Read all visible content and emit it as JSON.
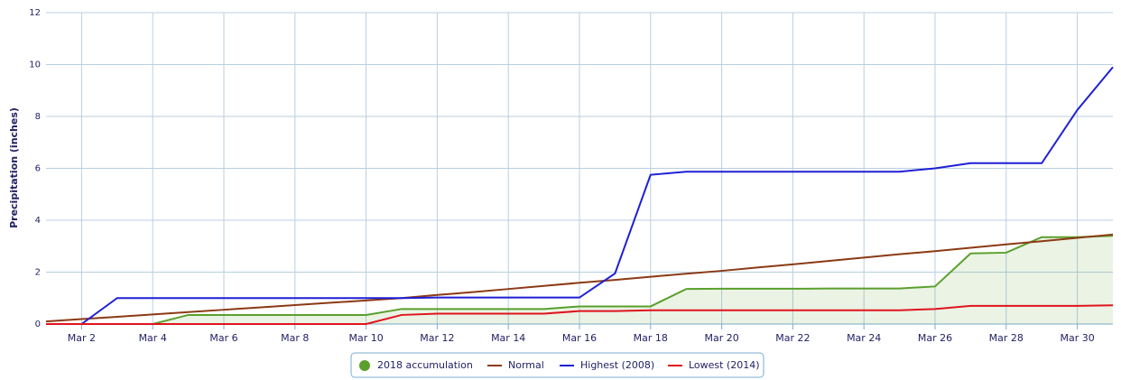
{
  "chart_data": {
    "type": "line",
    "y_label": "Precipitation (inches)",
    "categories": [
      null,
      "Mar 2",
      null,
      "Mar 4",
      null,
      "Mar 6",
      null,
      "Mar 8",
      null,
      "Mar 10",
      null,
      "Mar 12",
      null,
      "Mar 14",
      null,
      "Mar 16",
      null,
      "Mar 18",
      null,
      "Mar 20",
      null,
      "Mar 22",
      null,
      "Mar 24",
      null,
      "Mar 26",
      null,
      "Mar 28",
      null,
      "Mar 30",
      null
    ],
    "ylim": [
      0,
      12
    ],
    "yticks": [
      0,
      2,
      4,
      6,
      8,
      10,
      12
    ],
    "grid": true,
    "series": [
      {
        "name": "2018 accumulation",
        "color": "#5aa02c",
        "area": true,
        "values": [
          0,
          0,
          0,
          0,
          0.35,
          0.35,
          0.35,
          0.35,
          0.35,
          0.35,
          0.58,
          0.58,
          0.58,
          0.58,
          0.58,
          0.68,
          0.68,
          0.68,
          1.35,
          1.36,
          1.36,
          1.36,
          1.37,
          1.37,
          1.37,
          1.45,
          2.72,
          2.75,
          3.35,
          3.35,
          3.4
        ]
      },
      {
        "name": "Normal",
        "color": "#8b3a14",
        "values": [
          0.1,
          0.19,
          0.28,
          0.37,
          0.46,
          0.55,
          0.64,
          0.73,
          0.82,
          0.91,
          1.0,
          1.12,
          1.23,
          1.35,
          1.47,
          1.59,
          1.7,
          1.82,
          1.94,
          2.05,
          2.18,
          2.3,
          2.43,
          2.56,
          2.69,
          2.81,
          2.94,
          3.07,
          3.19,
          3.32,
          3.45
        ]
      },
      {
        "name": "Highest (2008)",
        "color": "#1f1fd6",
        "values": [
          null,
          0,
          1.0,
          1.0,
          1.0,
          1.0,
          1.0,
          1.0,
          1.0,
          1.0,
          1.0,
          1.02,
          1.02,
          1.02,
          1.02,
          1.02,
          1.95,
          5.75,
          5.87,
          5.87,
          5.87,
          5.87,
          5.87,
          5.87,
          5.87,
          6.0,
          6.2,
          6.2,
          6.2,
          8.25,
          9.9
        ]
      },
      {
        "name": "Lowest (2014)",
        "color": "#e0141e",
        "values": [
          0,
          0,
          0,
          0,
          0,
          0,
          0,
          0,
          0,
          0,
          0.35,
          0.4,
          0.4,
          0.4,
          0.4,
          0.5,
          0.5,
          0.53,
          0.53,
          0.53,
          0.53,
          0.53,
          0.53,
          0.53,
          0.53,
          0.58,
          0.7,
          0.7,
          0.7,
          0.7,
          0.72
        ]
      }
    ]
  }
}
